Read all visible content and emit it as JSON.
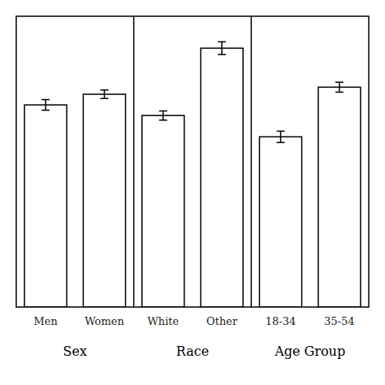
{
  "chart_data": {
    "type": "bar",
    "categories": [
      "Men",
      "Women",
      "White",
      "Other",
      "18-34",
      "35-54"
    ],
    "values": [
      0.57,
      0.6,
      0.54,
      0.73,
      0.48,
      0.62
    ],
    "errors": [
      0.015,
      0.012,
      0.013,
      0.018,
      0.016,
      0.014
    ],
    "groups": [
      {
        "label": "Sex",
        "count": 2
      },
      {
        "label": "Race",
        "count": 2
      },
      {
        "label": "Age Group",
        "count": 2
      }
    ],
    "color": "#ffffff",
    "ylim": [
      0,
      0.82
    ],
    "yticks": [],
    "tick_labels": "x",
    "grid": false
  }
}
